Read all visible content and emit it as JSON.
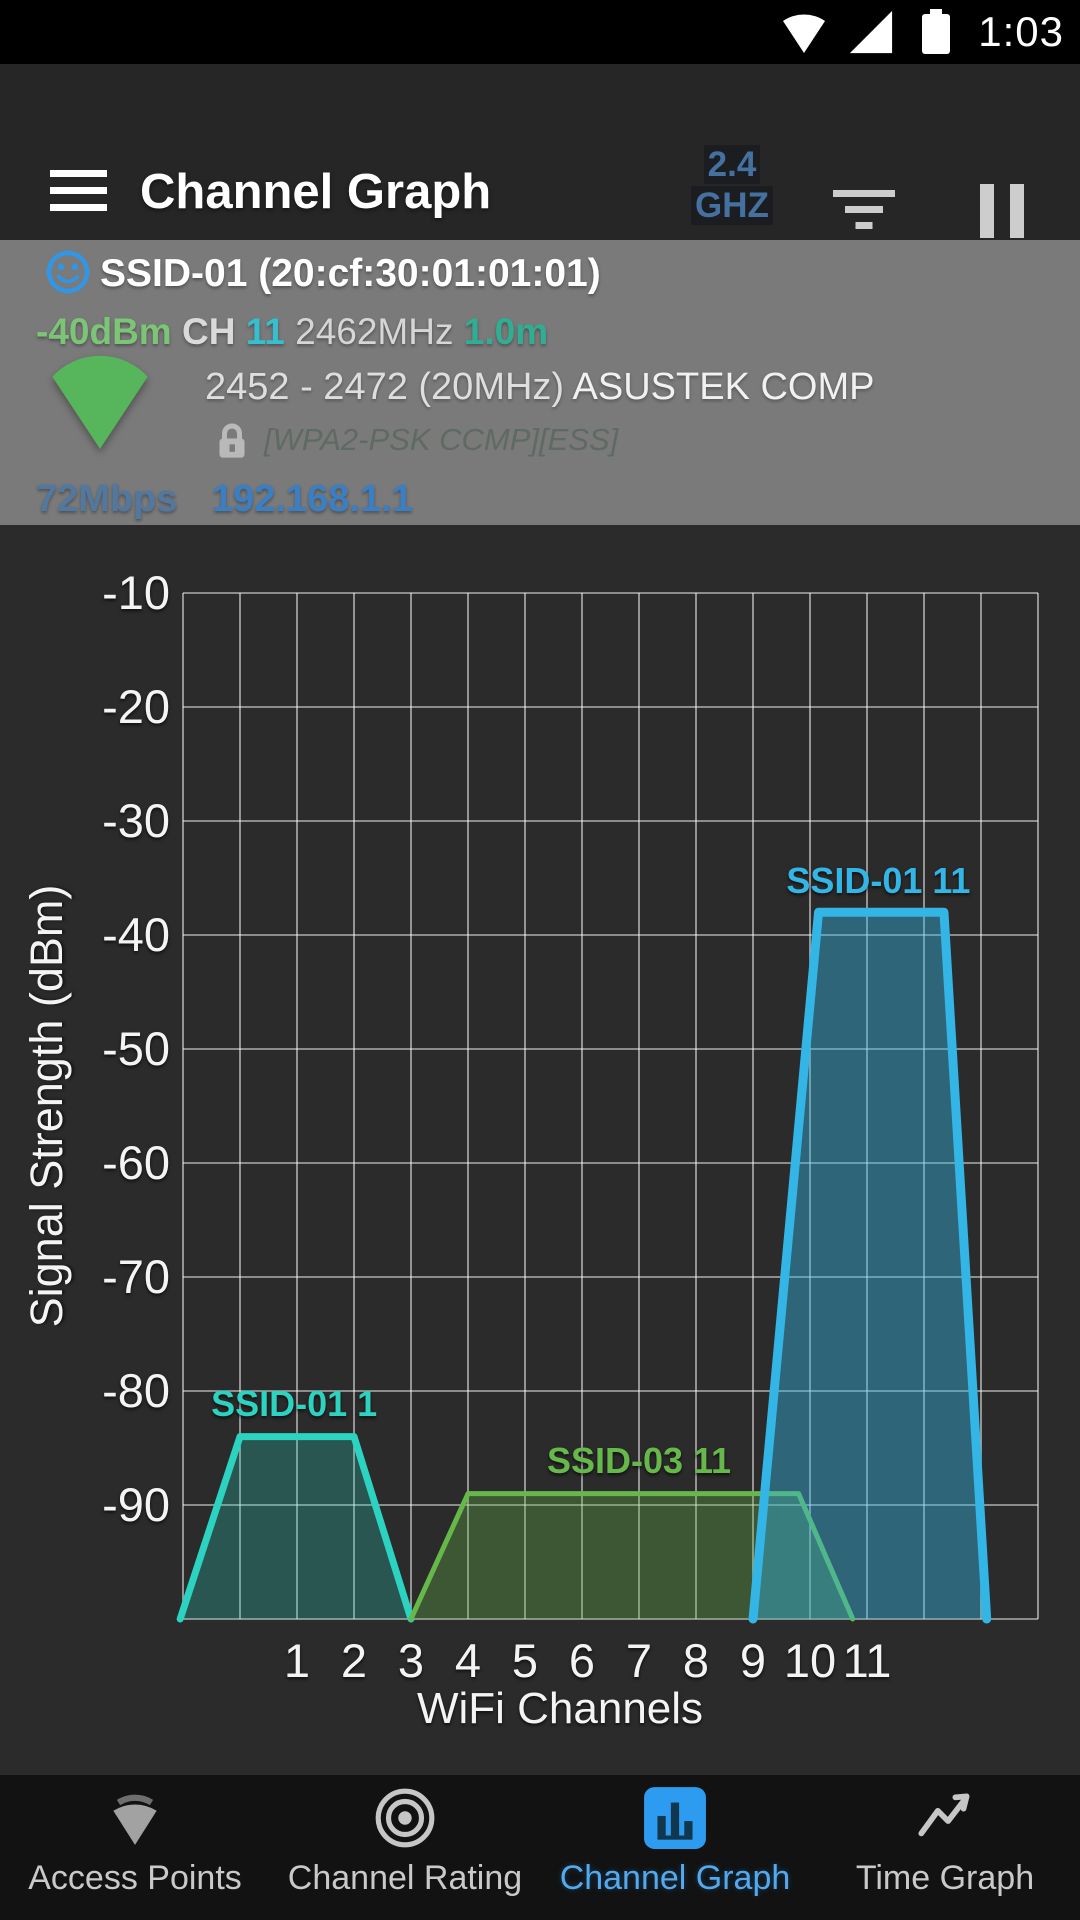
{
  "colors": {
    "accent_blue": "#33b5e5",
    "nav_active_blue": "#2d9bf0",
    "band_blue": "#44719f",
    "panel_bg": "#7a7a7a",
    "chart_bg": "#2b2b2b"
  },
  "status_bar": {
    "time": "1:03"
  },
  "app_bar": {
    "title": "Channel Graph",
    "band": {
      "line1": "2.4",
      "line2": "GHZ"
    }
  },
  "ap_panel": {
    "ssid_header": "SSID-01 (20:cf:30:01:01:01)",
    "signal": "-40dBm",
    "channel_label": "CH",
    "channel": "11",
    "frequency": "2462MHz",
    "distance": "1.0m",
    "channel_range": "2452 - 2472 (20MHz)",
    "vendor": "ASUSTEK COMP",
    "security": "[WPA2-PSK CCMP][ESS]",
    "link_speed": "72Mbps",
    "ip_address": "192.168.1.1"
  },
  "chart_data": {
    "type": "area",
    "title": "",
    "xlabel": "WiFi Channels",
    "ylabel": "Signal Strength (dBm)",
    "xlim": [
      -1,
      14
    ],
    "ylim": [
      -100,
      -10
    ],
    "x_ticks": [
      1,
      2,
      3,
      4,
      5,
      6,
      7,
      8,
      9,
      10,
      11
    ],
    "y_ticks": [
      -10,
      -20,
      -30,
      -40,
      -50,
      -60,
      -70,
      -80,
      -90
    ],
    "grid": true,
    "legend_position": "inline-labels",
    "series": [
      {
        "name": "SSID-01 1",
        "channel": 1,
        "peak_dbm": -84,
        "color": "#2bd3c0",
        "fill_opacity": 0.26,
        "stroke_width": 7,
        "points": [
          [
            -1.05,
            -100
          ],
          [
            0,
            -84
          ],
          [
            2,
            -84
          ],
          [
            3,
            -100
          ]
        ],
        "label_pos": [
          0.95,
          -82.2
        ]
      },
      {
        "name": "SSID-03 11",
        "channel": 11,
        "peak_dbm": -89,
        "color": "#67b84a",
        "fill_opacity": 0.3,
        "stroke_width": 5,
        "points": [
          [
            3,
            -100
          ],
          [
            4,
            -89
          ],
          [
            9.8,
            -89
          ],
          [
            10.75,
            -100
          ]
        ],
        "label_pos": [
          7,
          -87.2
        ]
      },
      {
        "name": "SSID-01 11",
        "channel": 11,
        "peak_dbm": -38,
        "color": "#33b5e5",
        "fill_opacity": 0.42,
        "stroke_width": 9,
        "points": [
          [
            9,
            -100
          ],
          [
            10.15,
            -38
          ],
          [
            12.35,
            -38
          ],
          [
            13.1,
            -100
          ]
        ],
        "label_pos": [
          11.2,
          -36.3
        ]
      }
    ]
  },
  "bottom_nav": {
    "items": [
      {
        "label": "Access Points",
        "active": false
      },
      {
        "label": "Channel Rating",
        "active": false
      },
      {
        "label": "Channel Graph",
        "active": true
      },
      {
        "label": "Time Graph",
        "active": false
      }
    ]
  }
}
